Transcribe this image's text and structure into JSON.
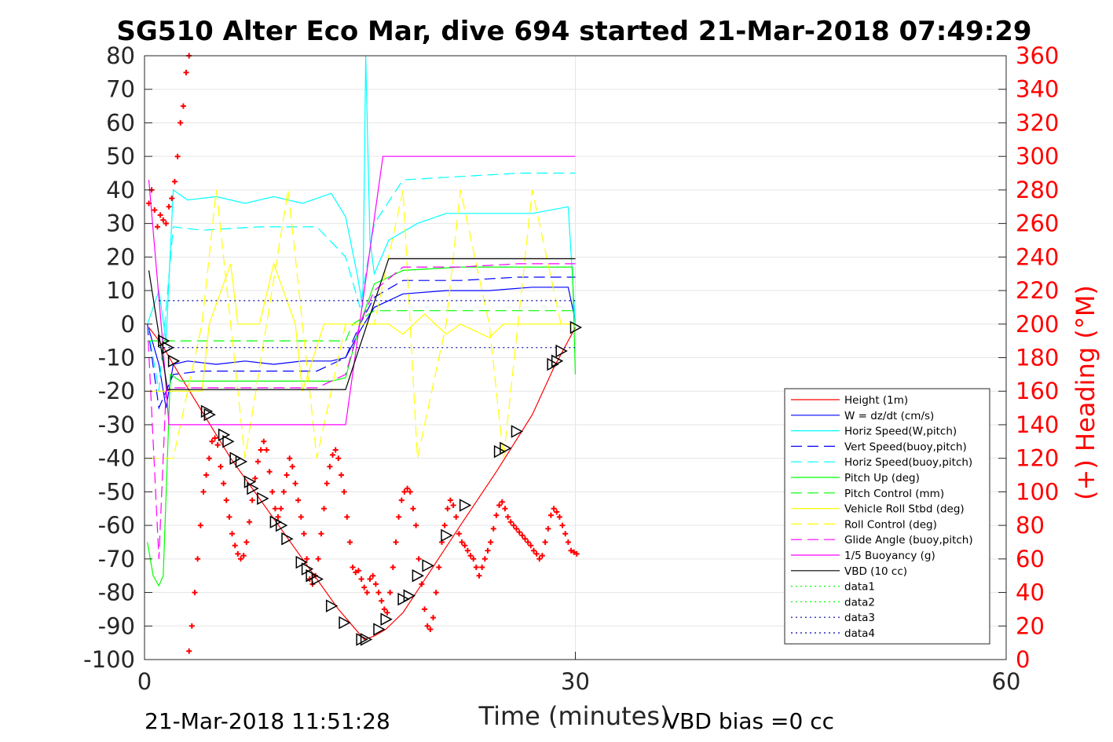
{
  "chart_data": {
    "type": "line",
    "title": "SG510 Alter Eco Mar, dive 694 started 21-Mar-2018 07:49:29",
    "xlabel": "Time (minutes)",
    "ylabel": "",
    "y2label": "(+) Heading (°M)",
    "xlim": [
      0,
      60
    ],
    "ylim": [
      -100,
      80
    ],
    "y2lim": [
      0,
      360
    ],
    "xticks": [
      "0",
      "30",
      "60"
    ],
    "yticks": [
      "80",
      "70",
      "60",
      "50",
      "40",
      "30",
      "20",
      "10",
      "0",
      "-10",
      "-20",
      "-30",
      "-40",
      "-50",
      "-60",
      "-70",
      "-80",
      "-90",
      "-100"
    ],
    "y2ticks": [
      "360",
      "340",
      "320",
      "300",
      "280",
      "260",
      "240",
      "220",
      "200",
      "180",
      "160",
      "140",
      "120",
      "100",
      "80",
      "60",
      "40",
      "20",
      "0"
    ],
    "grid": true,
    "legend_position": "bottom-right",
    "footer_left": "21-Mar-2018 11:51:28",
    "footer_right": "VBD bias =0 cc",
    "colors": {
      "red": "#ff0000",
      "blue": "#0000ff",
      "cyan": "#00ffff",
      "green": "#00ff00",
      "yellow": "#ffff00",
      "magenta": "#ff00ff",
      "black": "#000000",
      "navy": "#0000aa"
    },
    "series": [
      {
        "name": "Height (1m)",
        "color": "#ff0000",
        "style": "solid",
        "x": [
          0.3,
          1.2,
          2.0,
          4.0,
          6.0,
          8.0,
          10.0,
          12.0,
          13.5,
          14.5,
          15.3,
          16.0,
          16.8,
          18.0,
          20.0,
          22.0,
          24.5,
          27.0,
          28.5,
          30.0
        ],
        "y": [
          -1,
          -6,
          -12,
          -26,
          -40,
          -52,
          -64,
          -76,
          -85,
          -90,
          -94,
          -93,
          -91,
          -86,
          -73,
          -60,
          -44,
          -27,
          -13,
          -1
        ]
      },
      {
        "name": "W = dz/dt (cm/s)",
        "color": "#0000ff",
        "style": "solid",
        "x": [
          0.2,
          1.0,
          1.5,
          2.0,
          3.0,
          5.0,
          7.0,
          9.0,
          11.0,
          13.0,
          14.0,
          15.0,
          16.0,
          17.0,
          18.0,
          21.0,
          24.0,
          27.0,
          29.5,
          30.0
        ],
        "y": [
          0,
          -12,
          -25,
          -12,
          -11,
          -12,
          -11,
          -12,
          -11,
          -11,
          -10,
          -2,
          5,
          7,
          9,
          10,
          10,
          11,
          11,
          1
        ]
      },
      {
        "name": "Horiz Speed(W,pitch)",
        "color": "#00ffff",
        "style": "solid",
        "x": [
          0.2,
          1.0,
          1.5,
          2.0,
          3.0,
          5.0,
          7.0,
          9.0,
          11.0,
          13.0,
          14.0,
          14.8,
          15.2,
          15.4,
          15.7,
          16.0,
          17.0,
          19.0,
          21.0,
          24.0,
          27.0,
          29.5,
          30.0
        ],
        "y": [
          0,
          10,
          -5,
          40,
          37,
          38,
          36,
          38,
          36,
          39,
          32,
          15,
          5,
          80,
          25,
          15,
          25,
          30,
          33,
          33,
          33,
          35,
          0
        ]
      },
      {
        "name": "Vert Speed(buoy,pitch)",
        "color": "#0000ff",
        "style": "dash",
        "x": [
          0.2,
          1.0,
          2.0,
          4.0,
          8.0,
          12.0,
          14.0,
          15.0,
          16.0,
          18.0,
          22.0,
          26.0,
          30.0
        ],
        "y": [
          0,
          -25,
          -15,
          -14,
          -14,
          -14,
          -10,
          0,
          8,
          13,
          13,
          14,
          14
        ]
      },
      {
        "name": "Horiz Speed(buoy,pitch)",
        "color": "#00ffff",
        "style": "dash",
        "x": [
          0.2,
          1.0,
          2.0,
          4.0,
          8.0,
          12.0,
          14.0,
          15.0,
          16.0,
          18.0,
          22.0,
          26.0,
          30.0
        ],
        "y": [
          0,
          -20,
          29,
          28,
          29,
          29,
          20,
          5,
          30,
          43,
          44,
          45,
          45
        ]
      },
      {
        "name": "Pitch Up (deg)",
        "color": "#00ff00",
        "style": "solid",
        "x": [
          0.2,
          0.6,
          1.0,
          1.3,
          1.8,
          2.5,
          5.0,
          9.0,
          13.0,
          14.0,
          15.0,
          16.0,
          18.0,
          22.0,
          26.0,
          29.8,
          30.0
        ],
        "y": [
          -65,
          -75,
          -78,
          -75,
          -15,
          -17,
          -17,
          -17,
          -17,
          -16,
          0,
          12,
          16,
          17,
          17,
          17,
          -15
        ]
      },
      {
        "name": "Pitch Control (mm)",
        "color": "#00ff00",
        "style": "dash",
        "x": [
          0.2,
          14.0,
          14.5,
          16.0,
          30.0
        ],
        "y": [
          -5,
          -5,
          0,
          4,
          4
        ]
      },
      {
        "name": "Vehicle Roll Stbd (deg)",
        "color": "#ffff00",
        "style": "solid",
        "x": [
          0.2,
          2.0,
          4.0,
          4.5,
          6.0,
          6.5,
          8.0,
          9.0,
          10.5,
          11.0,
          12.5,
          13.5,
          15.0,
          17.0,
          18.0,
          19.5,
          21.0,
          22.0,
          24.0,
          25.0,
          27.0,
          28.5,
          30.0
        ],
        "y": [
          -20,
          -20,
          -20,
          0,
          18,
          0,
          0,
          18,
          0,
          -20,
          0,
          0,
          0,
          0,
          -3,
          3,
          -3,
          0,
          -4,
          0,
          0,
          0,
          0
        ]
      },
      {
        "name": "Roll Control (deg)",
        "color": "#ffff00",
        "style": "dash",
        "x": [
          0.2,
          2.0,
          4.0,
          5.0,
          6.0,
          7.0,
          8.5,
          10.0,
          11.0,
          12.0,
          14.0,
          16.0,
          18.0,
          19.0,
          21.0,
          22.0,
          24.0,
          25.0,
          27.0,
          29.0,
          30.0
        ],
        "y": [
          -40,
          -40,
          0,
          40,
          0,
          -40,
          0,
          40,
          0,
          -40,
          0,
          0,
          40,
          -40,
          0,
          40,
          0,
          -40,
          40,
          0,
          0
        ]
      },
      {
        "name": "Glide Angle (buoy,pitch)",
        "color": "#ff00ff",
        "style": "dash",
        "x": [
          0.2,
          1.0,
          1.5,
          2.0,
          4.0,
          8.0,
          12.0,
          14.0,
          15.0,
          16.0,
          18.0,
          22.0,
          26.0,
          30.0
        ],
        "y": [
          0,
          -70,
          -20,
          -19,
          -19,
          -19,
          -19,
          -15,
          0,
          10,
          17,
          17,
          18,
          18
        ]
      },
      {
        "name": "1/5 Buoyancy (g)",
        "color": "#ff00ff",
        "style": "solid",
        "x": [
          0.3,
          1.2,
          1.7,
          14.0,
          16.6,
          30.0
        ],
        "y": [
          43,
          -2,
          -30,
          -30,
          50,
          50
        ]
      },
      {
        "name": "VBD (10 cc)",
        "color": "#000000",
        "style": "solid",
        "x": [
          0.3,
          1.6,
          14.0,
          17.0,
          30.0
        ],
        "y": [
          16,
          -19.5,
          -19.5,
          19.5,
          19.5
        ]
      },
      {
        "name": "data1",
        "color": "#00ff00",
        "style": "dot",
        "x": [],
        "y": []
      },
      {
        "name": "data2",
        "color": "#00ff00",
        "style": "dot",
        "x": [],
        "y": []
      },
      {
        "name": "data3",
        "color": "#0000aa",
        "style": "dot",
        "x": [
          1.0,
          30.0
        ],
        "y": [
          7,
          7
        ]
      },
      {
        "name": "data4",
        "color": "#0000aa",
        "style": "dot",
        "x": [
          1.0,
          30.0
        ],
        "y": [
          -7,
          -7
        ]
      }
    ],
    "heading_points": {
      "color": "#ff0000",
      "marker": "+",
      "axis": "right",
      "x": [
        0.3,
        0.5,
        0.7,
        0.9,
        1.1,
        1.3,
        1.5,
        1.7,
        1.9,
        2.1,
        2.3,
        2.5,
        2.7,
        2.9,
        3.1,
        3.3,
        3.1,
        3.3,
        3.5,
        3.7,
        3.9,
        4.1,
        4.3,
        4.5,
        4.7,
        4.9,
        5.1,
        5.3,
        5.5,
        5.7,
        5.9,
        6.1,
        6.3,
        6.5,
        6.7,
        6.9,
        7.1,
        7.3,
        7.5,
        7.7,
        7.9,
        8.1,
        8.3,
        8.5,
        8.7,
        8.9,
        9.1,
        9.3,
        9.5,
        9.7,
        9.9,
        10.1,
        10.3,
        10.5,
        10.7,
        10.9,
        11.1,
        11.3,
        11.5,
        11.7,
        11.9,
        12.1,
        12.3,
        12.5,
        12.7,
        12.9,
        13.1,
        13.3,
        13.5,
        13.7,
        13.9,
        14.1,
        14.3,
        14.5,
        14.7,
        14.9,
        15.1,
        15.3,
        15.5,
        15.7,
        15.9,
        16.1,
        16.3,
        16.5,
        16.7,
        16.9,
        17.1,
        17.3,
        17.5,
        17.7,
        17.9,
        18.1,
        18.3,
        18.5,
        18.7,
        18.9,
        19.1,
        19.3,
        19.5,
        19.7,
        19.9,
        20.1,
        20.3,
        20.5,
        20.7,
        20.9,
        21.1,
        21.3,
        21.5,
        21.7,
        21.9,
        22.1,
        22.3,
        22.5,
        22.7,
        22.9,
        23.1,
        23.3,
        23.5,
        23.7,
        23.9,
        24.1,
        24.3,
        24.5,
        24.7,
        24.9,
        25.1,
        25.3,
        25.5,
        25.7,
        25.9,
        26.1,
        26.3,
        26.5,
        26.7,
        26.9,
        27.1,
        27.3,
        27.5,
        27.7,
        27.9,
        28.1,
        28.3,
        28.5,
        28.7,
        28.9,
        29.1,
        29.3,
        29.5,
        29.7,
        29.9,
        30.1
      ],
      "y": [
        272,
        280,
        268,
        258,
        265,
        262,
        260,
        270,
        275,
        285,
        300,
        320,
        330,
        350,
        360,
        365,
        5,
        20,
        40,
        60,
        80,
        100,
        110,
        120,
        130,
        132,
        128,
        115,
        105,
        95,
        85,
        75,
        68,
        63,
        60,
        62,
        70,
        82,
        95,
        108,
        118,
        125,
        130,
        125,
        112,
        100,
        90,
        85,
        90,
        100,
        110,
        120,
        115,
        105,
        95,
        85,
        75,
        60,
        48,
        45,
        50,
        60,
        75,
        90,
        105,
        115,
        122,
        125,
        120,
        110,
        100,
        85,
        70,
        55,
        52,
        53,
        48,
        43,
        40,
        48,
        50,
        45,
        40,
        35,
        30,
        28,
        40,
        55,
        70,
        85,
        95,
        100,
        102,
        100,
        90,
        80,
        60,
        45,
        30,
        20,
        18,
        25,
        40,
        55,
        70,
        80,
        90,
        95,
        92,
        85,
        75,
        70,
        68,
        65,
        62,
        60,
        55,
        50,
        55,
        60,
        65,
        70,
        78,
        86,
        92,
        94,
        90,
        85,
        82,
        80,
        78,
        76,
        74,
        72,
        70,
        68,
        65,
        63,
        60,
        62,
        70,
        78,
        86,
        90,
        88,
        85,
        80,
        75,
        70,
        65,
        64,
        63
      ]
    },
    "direction_markers": {
      "x": [
        1.3,
        1.6,
        2.0,
        4.3,
        4.5,
        5.5,
        5.8,
        6.3,
        6.7,
        7.3,
        7.5,
        8.2,
        9.1,
        9.5,
        9.9,
        10.9,
        11.3,
        11.6,
        12.0,
        13.0,
        13.9,
        15.1,
        15.4,
        16.3,
        16.8,
        18.0,
        18.4,
        19.0,
        19.7,
        21.0,
        22.3,
        24.7,
        25.1,
        25.9,
        28.4,
        28.7,
        29.0,
        30.0
      ],
      "y": [
        -5,
        -7,
        -11,
        -26,
        -27,
        -33,
        -35,
        -40,
        -41,
        -47,
        -49,
        -52,
        -59,
        -60,
        -64,
        -71,
        -73,
        -75,
        -76,
        -84,
        -89,
        -94,
        -94,
        -91,
        -88,
        -82,
        -81,
        -75,
        -72,
        -63,
        -54,
        -38,
        -37,
        -32,
        -12,
        -11,
        -8,
        -1
      ]
    }
  }
}
